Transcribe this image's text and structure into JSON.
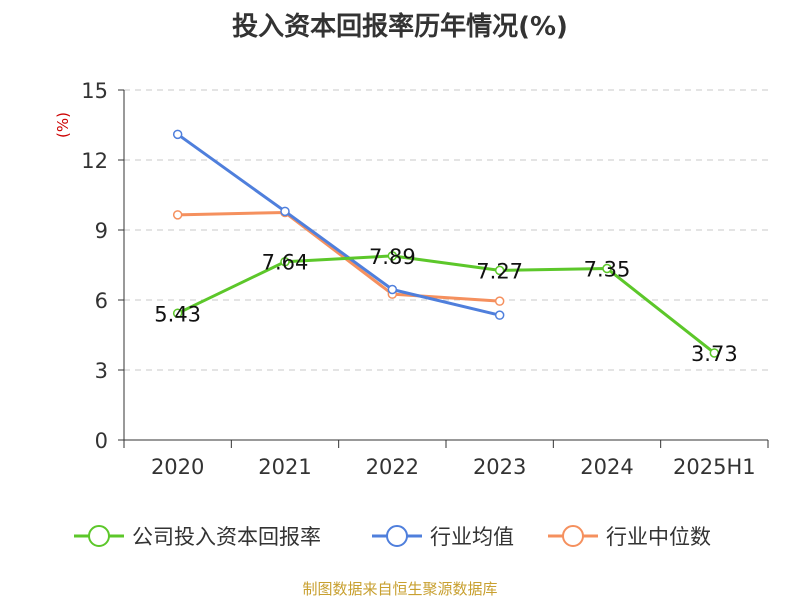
{
  "chart_data": {
    "type": "line",
    "title": "投入资本回报率历年情况(%)",
    "ylabel": "(%)",
    "xlabel": "",
    "categories": [
      "2020",
      "2021",
      "2022",
      "2023",
      "2024",
      "2025H1"
    ],
    "ylim": [
      0,
      15
    ],
    "yticks": [
      0,
      3,
      6,
      9,
      12,
      15
    ],
    "grid": true,
    "legend_position": "bottom",
    "series": [
      {
        "name": "公司投入资本回报率",
        "color": "#5cc72a",
        "values": [
          5.43,
          7.64,
          7.89,
          7.27,
          7.35,
          3.73
        ],
        "labels": [
          "5.43",
          "7.64",
          "7.89",
          "7.27",
          "7.35",
          "3.73"
        ]
      },
      {
        "name": "行业均值",
        "color": "#4f7fdc",
        "values": [
          13.1,
          9.8,
          6.45,
          5.35,
          null,
          null
        ]
      },
      {
        "name": "行业中位数",
        "color": "#f5905e",
        "values": [
          9.65,
          9.75,
          6.25,
          5.95,
          null,
          null
        ]
      }
    ]
  },
  "footer": {
    "source": "制图数据来自恒生聚源数据库"
  }
}
